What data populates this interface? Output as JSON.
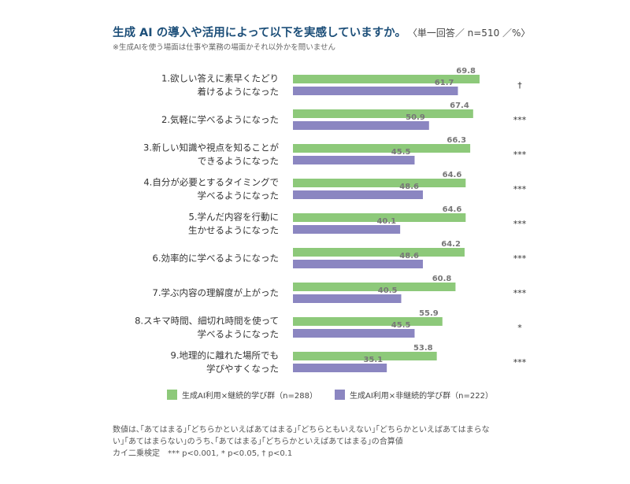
{
  "title": "生成 AI の導入や活用によって以下を実感していますか。",
  "title_unit": "〈単一回答／ n=510 ／%〉",
  "subtitle": "※生成AIを使う場面は仕事や業務の場面かそれ以外かを問いません",
  "notes": [
    "数値は､｢あてはまる｣｢どちらかといえばあてはまる｣｢どちらともいえない｣｢どちらかといえばあてはまらな",
    "い｣｢あてはまらない｣のうち､｢あてはまる｣｢どちらかといえばあてはまる｣の合算値",
    "カイ二乗検定　*** p<0.001, * p<0.05, † p<0.1"
  ],
  "chart_data": {
    "type": "bar",
    "orientation": "horizontal",
    "categories": [
      [
        "1.欲しい答えに素早くたどり",
        "着けるようになった"
      ],
      [
        "2.気軽に学べるようになった"
      ],
      [
        "3.新しい知識や視点を知ることが",
        "できるようになった"
      ],
      [
        "4.自分が必要とするタイミングで",
        "学べるようになった"
      ],
      [
        "5.学んだ内容を行動に",
        "生かせるようになった"
      ],
      [
        "6.効率的に学べるようになった"
      ],
      [
        "7.学ぶ内容の理解度が上がった"
      ],
      [
        "8.スキマ時間、細切れ時間を使って",
        "学べるようになった"
      ],
      [
        "9.地理的に離れた場所でも",
        "学びやすくなった"
      ]
    ],
    "series": [
      {
        "name": "生成AI利用×継続的学び群（n=288）",
        "color": "#8dc97a",
        "values": [
          69.8,
          67.4,
          66.3,
          64.6,
          64.6,
          64.2,
          60.8,
          55.9,
          53.8
        ]
      },
      {
        "name": "生成AI利用×非継続的学び群（n=222）",
        "color": "#8b86c1",
        "values": [
          61.7,
          50.9,
          45.5,
          48.6,
          40.1,
          48.6,
          40.5,
          45.5,
          35.1
        ]
      }
    ],
    "significance": [
      "†",
      "***",
      "***",
      "***",
      "***",
      "***",
      "***",
      "*",
      "***"
    ],
    "xlim": [
      0,
      100
    ],
    "grid": false,
    "legend_position": "bottom"
  }
}
